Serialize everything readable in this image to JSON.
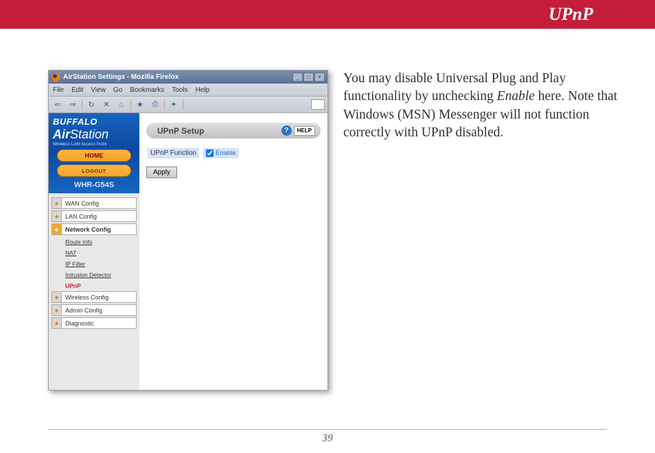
{
  "banner": {
    "title": "UPnP",
    "bg_color": "#c41e3a",
    "text_color": "#ffffff"
  },
  "window": {
    "title": "AirStation Settings - Mozilla Firefox",
    "menus": [
      "File",
      "Edit",
      "View",
      "Go",
      "Bookmarks",
      "Tools",
      "Help"
    ]
  },
  "brand": {
    "name": "BUFFALO",
    "product": "AirStation",
    "product_light": "Station",
    "subtitle": "Wireless LAN Access Point",
    "home": "HOME",
    "logout": "LOGOUT",
    "model": "WHR-G54S"
  },
  "nav": {
    "items": [
      {
        "label": "WAN Config",
        "active": false
      },
      {
        "label": "LAN Config",
        "active": false
      },
      {
        "label": "Network Config",
        "active": true
      }
    ],
    "subitems": [
      {
        "label": "Route Info",
        "active": false
      },
      {
        "label": "NAT",
        "active": false
      },
      {
        "label": "IP Filter",
        "active": false
      },
      {
        "label": "Intrusion Detector",
        "active": false
      },
      {
        "label": "UPnP",
        "active": true
      }
    ],
    "items2": [
      {
        "label": "Wireless Config"
      },
      {
        "label": "Admin Config"
      },
      {
        "label": "Diagnostic"
      }
    ]
  },
  "panel": {
    "title": "UPnP Setup",
    "help": "HELP",
    "field_label": "UPnP Function",
    "checkbox_label": "Enable",
    "checked": true,
    "apply": "Apply"
  },
  "description": {
    "p1a": "You may disable Universal Plug and Play functionality by unchecking ",
    "em": "Enable",
    "p1b": " here.  Note that Windows (MSN) Messenger will not function correctly with UPnP disabled."
  },
  "page_number": "39"
}
